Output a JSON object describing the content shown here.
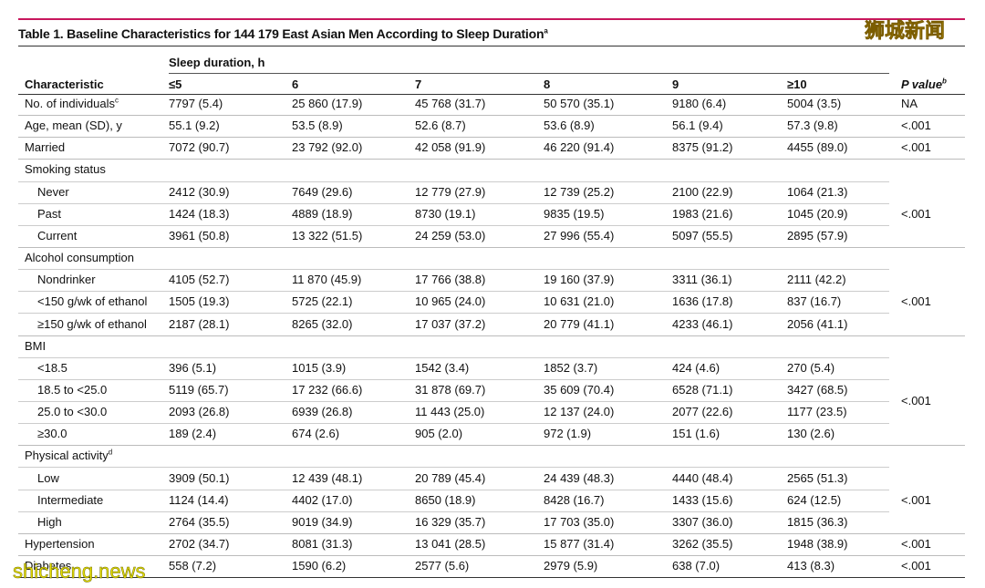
{
  "title": {
    "text": "Table 1. Baseline Characteristics for 144 179 East Asian Men According to Sleep Duration",
    "sup": "a"
  },
  "table": {
    "stub_header": "Characteristic",
    "spanner": "Sleep duration, h",
    "columns": [
      "≤5",
      "6",
      "7",
      "8",
      "9",
      "≥10"
    ],
    "p_header": {
      "text": "P value",
      "sup": "b"
    },
    "rows": [
      {
        "label": "No. of individuals",
        "sup": "c",
        "cells": [
          "7797 (5.4)",
          "25 860 (17.9)",
          "45 768 (31.7)",
          "50 570 (35.1)",
          "9180 (6.4)",
          "5004 (3.5)"
        ],
        "p": "NA"
      },
      {
        "label": "Age, mean (SD), y",
        "cells": [
          "55.1 (9.2)",
          "53.5 (8.9)",
          "52.6 (8.7)",
          "53.6 (8.9)",
          "56.1 (9.4)",
          "57.3 (9.8)"
        ],
        "p": "<.001"
      },
      {
        "label": "Married",
        "cells": [
          "7072 (90.7)",
          "23 792 (92.0)",
          "42 058 (91.9)",
          "46 220 (91.4)",
          "8375 (91.2)",
          "4455 (89.0)"
        ],
        "p": "<.001"
      },
      {
        "label": "Smoking status",
        "subrows": [
          {
            "label": "Never",
            "cells": [
              "2412 (30.9)",
              "7649 (29.6)",
              "12 779 (27.9)",
              "12 739 (25.2)",
              "2100 (22.9)",
              "1064 (21.3)"
            ]
          },
          {
            "label": "Past",
            "cells": [
              "1424 (18.3)",
              "4889 (18.9)",
              "8730 (19.1)",
              "9835 (19.5)",
              "1983 (21.6)",
              "1045 (20.9)"
            ]
          },
          {
            "label": "Current",
            "cells": [
              "3961 (50.8)",
              "13 322 (51.5)",
              "24 259 (53.0)",
              "27 996 (55.4)",
              "5097 (55.5)",
              "2895 (57.9)"
            ]
          }
        ],
        "p": "<.001"
      },
      {
        "label": "Alcohol consumption",
        "subrows": [
          {
            "label": "Nondrinker",
            "cells": [
              "4105 (52.7)",
              "11 870 (45.9)",
              "17 766 (38.8)",
              "19 160 (37.9)",
              "3311 (36.1)",
              "2111 (42.2)"
            ]
          },
          {
            "label": "<150 g/wk of ethanol",
            "cells": [
              "1505 (19.3)",
              "5725 (22.1)",
              "10 965 (24.0)",
              "10 631 (21.0)",
              "1636 (17.8)",
              "837 (16.7)"
            ]
          },
          {
            "label": "≥150 g/wk of ethanol",
            "cells": [
              "2187 (28.1)",
              "8265 (32.0)",
              "17 037 (37.2)",
              "20 779 (41.1)",
              "4233 (46.1)",
              "2056 (41.1)"
            ]
          }
        ],
        "p": "<.001"
      },
      {
        "label": "BMI",
        "subrows": [
          {
            "label": "<18.5",
            "cells": [
              "396 (5.1)",
              "1015 (3.9)",
              "1542 (3.4)",
              "1852 (3.7)",
              "424 (4.6)",
              "270 (5.4)"
            ]
          },
          {
            "label": "18.5 to <25.0",
            "cells": [
              "5119 (65.7)",
              "17 232 (66.6)",
              "31 878 (69.7)",
              "35 609 (70.4)",
              "6528 (71.1)",
              "3427 (68.5)"
            ]
          },
          {
            "label": "25.0 to <30.0",
            "cells": [
              "2093 (26.8)",
              "6939 (26.8)",
              "11 443 (25.0)",
              "12 137 (24.0)",
              "2077 (22.6)",
              "1177 (23.5)"
            ]
          },
          {
            "label": "≥30.0",
            "cells": [
              "189 (2.4)",
              "674 (2.6)",
              "905 (2.0)",
              "972 (1.9)",
              "151 (1.6)",
              "130 (2.6)"
            ]
          }
        ],
        "p": "<.001"
      },
      {
        "label": "Physical activity",
        "sup": "d",
        "subrows": [
          {
            "label": "Low",
            "cells": [
              "3909 (50.1)",
              "12 439 (48.1)",
              "20 789 (45.4)",
              "24 439 (48.3)",
              "4440 (48.4)",
              "2565 (51.3)"
            ]
          },
          {
            "label": "Intermediate",
            "cells": [
              "1124 (14.4)",
              "4402 (17.0)",
              "8650 (18.9)",
              "8428 (16.7)",
              "1433 (15.6)",
              "624 (12.5)"
            ]
          },
          {
            "label": "High",
            "cells": [
              "2764 (35.5)",
              "9019 (34.9)",
              "16 329 (35.7)",
              "17 703 (35.0)",
              "3307 (36.0)",
              "1815 (36.3)"
            ]
          }
        ],
        "p": "<.001"
      },
      {
        "label": "Hypertension",
        "cells": [
          "2702 (34.7)",
          "8081 (31.3)",
          "13 041 (28.5)",
          "15 877 (31.4)",
          "3262 (35.5)",
          "1948 (38.9)"
        ],
        "p": "<.001"
      },
      {
        "label": "Diabetes",
        "cells": [
          "558 (7.2)",
          "1590 (6.2)",
          "2577 (5.6)",
          "2979 (5.9)",
          "638 (7.0)",
          "413 (8.3)"
        ],
        "p": "<.001"
      }
    ]
  },
  "watermark": {
    "top": "狮城新闻",
    "bottom": "shicheng.news"
  }
}
